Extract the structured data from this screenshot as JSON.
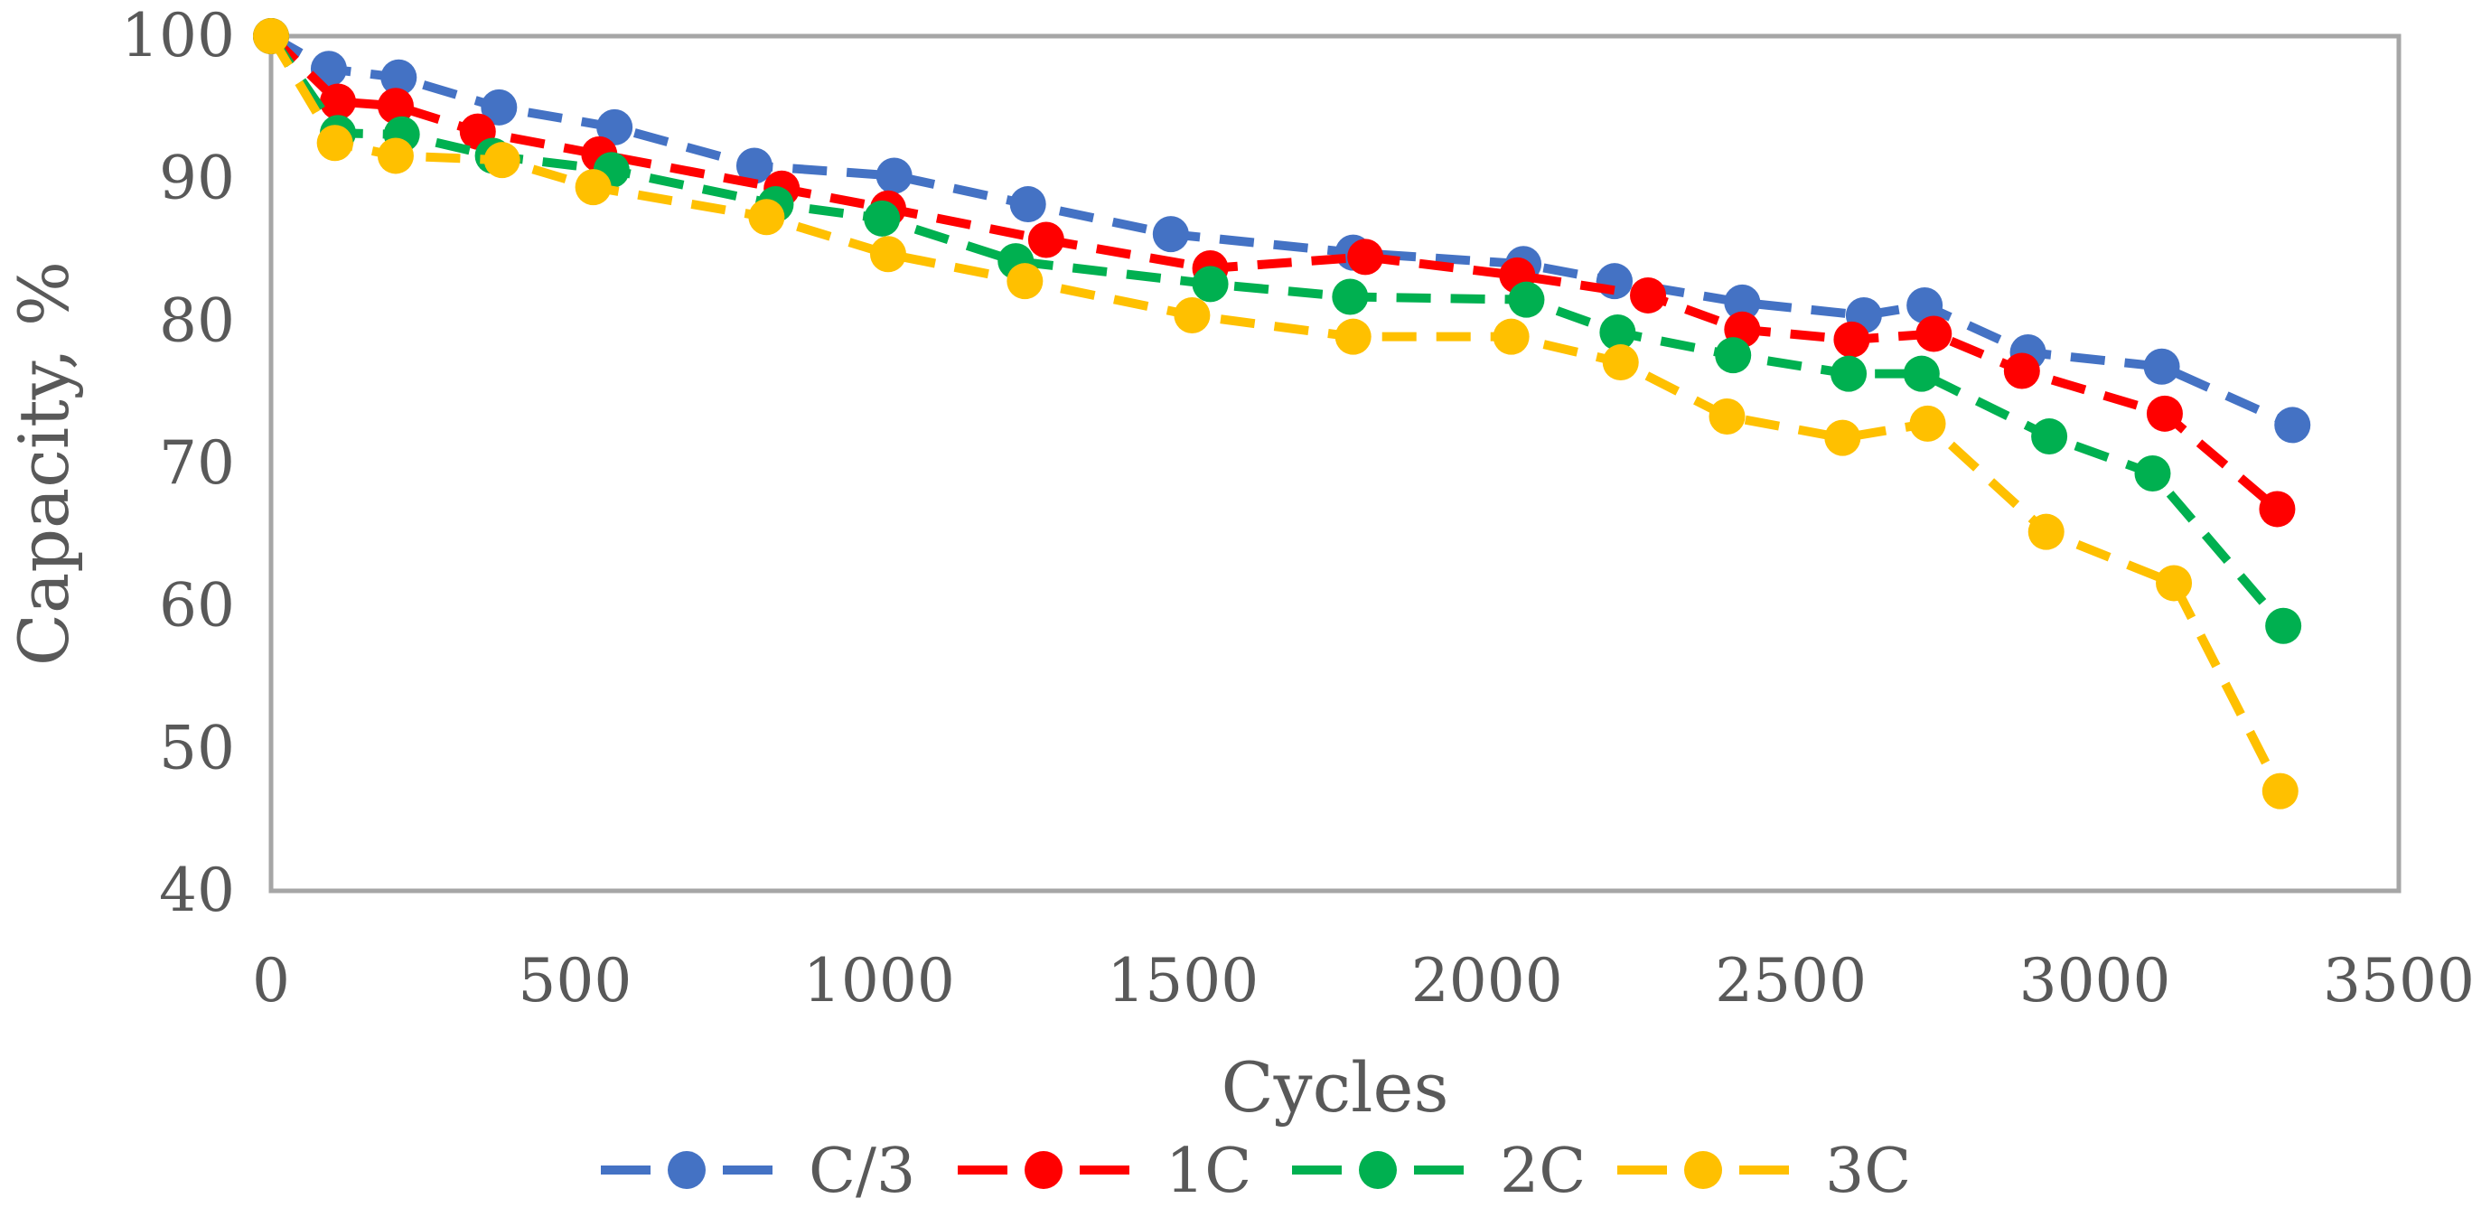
{
  "chart_data": {
    "type": "line",
    "title": "",
    "xlabel": "Cycles",
    "ylabel": "Capacity, %",
    "xlim": [
      0,
      3500
    ],
    "ylim": [
      40,
      100
    ],
    "xticks": [
      0,
      500,
      1000,
      1500,
      2000,
      2500,
      3000,
      3500
    ],
    "yticks": [
      40,
      50,
      60,
      70,
      80,
      90,
      100
    ],
    "grid": false,
    "legend_position": "bottom",
    "series": [
      {
        "name": "C/3",
        "color": "#4472C4",
        "x": [
          0,
          95,
          210,
          375,
          565,
          795,
          1025,
          1245,
          1480,
          1780,
          2060,
          2210,
          2420,
          2620,
          2720,
          2890,
          3110,
          3325
        ],
        "y": [
          100,
          97.7,
          97.1,
          95.0,
          93.6,
          90.9,
          90.2,
          88.2,
          86.1,
          84.8,
          84.0,
          82.8,
          81.3,
          80.4,
          81.1,
          77.8,
          76.8,
          72.7
        ]
      },
      {
        "name": "1C",
        "color": "#FF0000",
        "x": [
          0,
          110,
          205,
          340,
          540,
          840,
          1015,
          1275,
          1545,
          1800,
          2050,
          2265,
          2420,
          2600,
          2735,
          2880,
          3115,
          3300
        ],
        "y": [
          100,
          95.4,
          95.1,
          93.3,
          91.7,
          89.3,
          87.9,
          85.7,
          83.7,
          84.5,
          83.2,
          81.8,
          79.4,
          78.7,
          79.1,
          76.5,
          73.5,
          66.8
        ]
      },
      {
        "name": "2C",
        "color": "#00B050",
        "x": [
          0,
          110,
          215,
          365,
          560,
          830,
          1005,
          1225,
          1545,
          1775,
          2065,
          2215,
          2405,
          2595,
          2715,
          2925,
          3095,
          3310
        ],
        "y": [
          100,
          93.2,
          93.1,
          91.6,
          90.6,
          88.2,
          87.2,
          84.2,
          82.6,
          81.7,
          81.5,
          79.2,
          77.6,
          76.3,
          76.3,
          71.9,
          69.3,
          58.6
        ]
      },
      {
        "name": "3C",
        "color": "#FFC000",
        "x": [
          0,
          105,
          205,
          380,
          530,
          815,
          1015,
          1240,
          1515,
          1780,
          2040,
          2220,
          2395,
          2585,
          2725,
          2920,
          3130,
          3305
        ],
        "y": [
          100,
          92.5,
          91.6,
          91.3,
          89.4,
          87.3,
          84.7,
          82.8,
          80.4,
          78.9,
          78.9,
          77.1,
          73.3,
          71.8,
          72.8,
          65.2,
          61.6,
          47.0
        ]
      }
    ]
  }
}
